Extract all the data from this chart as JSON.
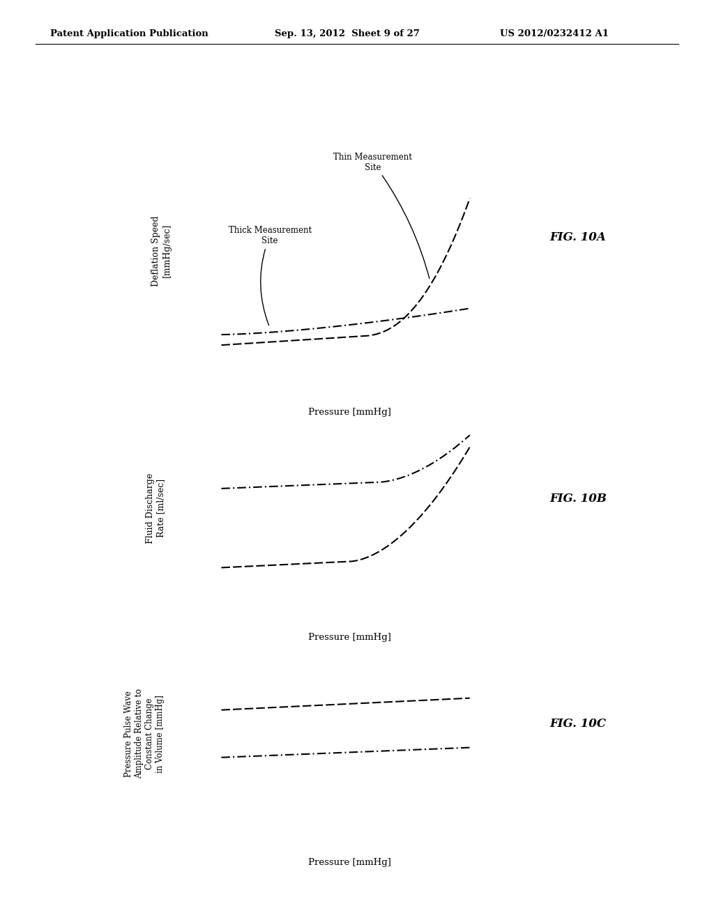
{
  "header_left": "Patent Application Publication",
  "header_mid": "Sep. 13, 2012  Sheet 9 of 27",
  "header_right": "US 2012/0232412 A1",
  "fig_labels": [
    "FIG. 10A",
    "FIG. 10B",
    "FIG. 10C"
  ],
  "ylabel_10A": "Deflation Speed\n[mmHg/sec]",
  "ylabel_10B": "Fluid Discharge\nRate [ml/sec]",
  "ylabel_10C": "Pressure Pulse Wave\nAmplitude Relative to\nConstant Change\nin Volume [mmHg]",
  "xlabel": "Pressure [mmHg]",
  "annotation_thin": "Thin Measurement\nSite",
  "annotation_thick": "Thick Measurement\nSite",
  "bg_color": "#ffffff",
  "line_color": "#000000"
}
